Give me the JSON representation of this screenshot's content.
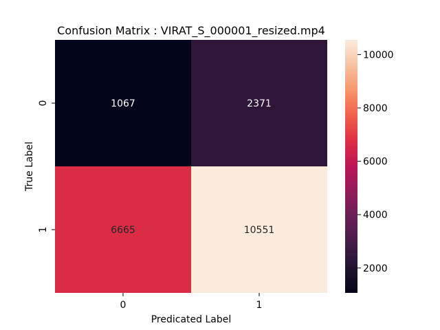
{
  "chart_data": {
    "type": "heatmap",
    "title": "Confusion Matrix : VIRAT_S_000001_resized.mp4",
    "xlabel": "Predicated Label",
    "ylabel": "True Label",
    "x_categories": [
      "0",
      "1"
    ],
    "y_categories": [
      "0",
      "1"
    ],
    "values": [
      [
        1067,
        2371
      ],
      [
        6665,
        10551
      ]
    ],
    "value_labels": [
      [
        "1067",
        "2371"
      ],
      [
        "6665",
        "10551"
      ]
    ],
    "colorscale": "rocket",
    "colorbar": {
      "range": [
        1067,
        10551
      ],
      "ticks": [
        2000,
        4000,
        6000,
        8000,
        10000
      ],
      "tick_labels": [
        "2000",
        "4000",
        "6000",
        "8000",
        "10000"
      ]
    },
    "grid": false
  }
}
